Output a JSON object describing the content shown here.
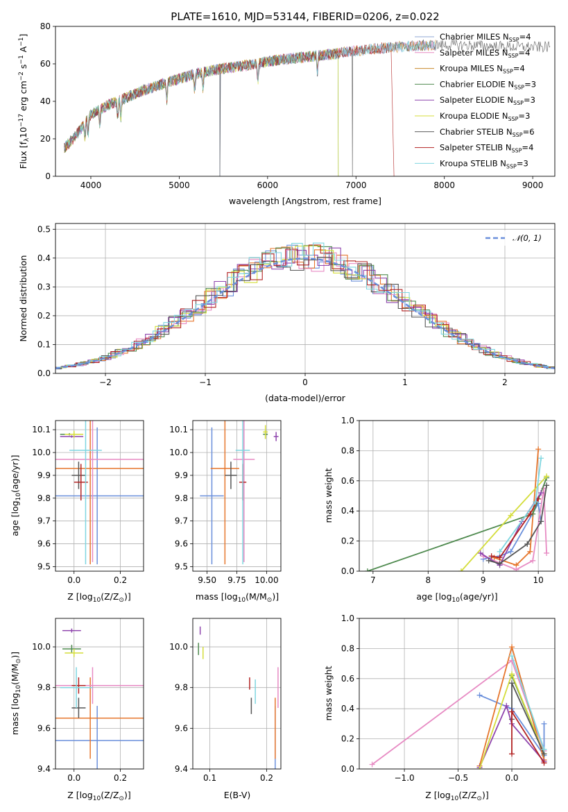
{
  "chart_data": [
    {
      "type": "line",
      "title": "PLATE=1610, MJD=53144, FIBERID=0206, z=0.022",
      "xlabel": "wavelength [Angstrom, rest frame]",
      "ylabel": "Flux [f",
      "ylabel_sub": "λ",
      "ylabel_mid": "10",
      "ylabel_exp1": "−17",
      "ylabel_tail": " erg cm",
      "ylabel_exp2": "−2",
      "ylabel_tail2": " s",
      "ylabel_exp3": "−1",
      "ylabel_tail3": " A",
      "ylabel_exp4": "−1",
      "ylabel_end": "]",
      "xlim": [
        3600,
        9250
      ],
      "ylim": [
        0,
        80
      ],
      "xticks": [
        4000,
        5000,
        6000,
        7000,
        8000,
        9000
      ],
      "yticks": [
        0,
        20,
        40,
        60,
        80
      ],
      "grid": false,
      "legend_position": "upper-right",
      "series": [
        {
          "name": "Chabrier MILES",
          "sub": "SSP",
          "n": "4",
          "color": "#8fa7d6",
          "end_x": 7900
        },
        {
          "name": "Salpeter MILES",
          "sub": "SSP",
          "n": "4",
          "color": "#e78ac3",
          "end_x": 7900
        },
        {
          "name": "Kroupa MILES",
          "sub": "SSP",
          "n": "4",
          "color": "#c8882c",
          "end_x": 7900
        },
        {
          "name": "Chabrier ELODIE",
          "sub": "SSP",
          "n": "3",
          "color": "#4f8a4f",
          "end_x": 6800
        },
        {
          "name": "Salpeter ELODIE",
          "sub": "SSP",
          "n": "3",
          "color": "#8e44ad",
          "end_x": 6800
        },
        {
          "name": "Kroupa ELODIE",
          "sub": "SSP",
          "n": "3",
          "color": "#d4dd3a",
          "end_x": 6800
        },
        {
          "name": "Chabrier STELIB",
          "sub": "SSP",
          "n": "6",
          "color": "#555555",
          "end_x": 9200
        },
        {
          "name": "Salpeter STELIB",
          "sub": "SSP",
          "n": "4",
          "color": "#b22222",
          "end_x": 7400
        },
        {
          "name": "Kroupa STELIB",
          "sub": "SSP",
          "n": "3",
          "color": "#7fd6e0",
          "end_x": 7900
        }
      ],
      "continuum": {
        "x": [
          3700,
          3800,
          3900,
          4000,
          4200,
          4400,
          4600,
          4800,
          5000,
          5200,
          5500,
          5800,
          6100,
          6400,
          6700,
          7000,
          7300,
          7600,
          7900,
          8200,
          8500,
          8800,
          9100,
          9200
        ],
        "y": [
          15,
          20,
          26,
          33,
          38,
          42,
          46,
          49,
          52,
          55,
          57.5,
          59.5,
          62,
          63.5,
          65,
          67,
          68.5,
          69.5,
          70,
          70,
          69.5,
          69,
          69,
          69
        ]
      }
    },
    {
      "type": "line",
      "xlabel": "(data-model)/error",
      "ylabel": "Normed distribution",
      "xlim": [
        -2.5,
        2.5
      ],
      "ylim": [
        0,
        0.52
      ],
      "xticks": [
        -2,
        -1,
        0,
        1,
        2
      ],
      "yticks": [
        0.0,
        0.1,
        0.2,
        0.3,
        0.4,
        0.5
      ],
      "grid": true,
      "legend_position": "upper-right",
      "legend_label": "𝒩(0, 1)",
      "hist_colors": [
        "#6a8fdb",
        "#e6752b",
        "#e78ac3",
        "#4f8a4f",
        "#8e44ad",
        "#d4dd3a",
        "#555555",
        "#b22222",
        "#7fd6e0"
      ]
    },
    {
      "type": "scatter",
      "xlabel": "Z [log",
      "xlabel_sub": "10",
      "xlabel_tail": "(Z/Z",
      "xlabel_sun": "⊙",
      "xlabel_end": ")]",
      "ylabel": "age  [log",
      "ylabel_sub": "10",
      "ylabel_tail": "(age/yr)]",
      "xlim": [
        -0.08,
        0.3
      ],
      "ylim": [
        9.48,
        10.14
      ],
      "xticks": [
        0.0,
        0.2
      ],
      "yticks": [
        9.5,
        9.6,
        9.7,
        9.8,
        9.9,
        10.0,
        10.1
      ],
      "grid": true,
      "points": [
        {
          "x": 0.1,
          "y": 9.81,
          "xerr": 0.2,
          "yerr": 0.3,
          "color": "#6a8fdb"
        },
        {
          "x": 0.07,
          "y": 9.93,
          "xerr": 0.23,
          "yerr": 0.42,
          "color": "#e6752b"
        },
        {
          "x": 0.08,
          "y": 9.97,
          "xerr": 0.22,
          "yerr": 0.45,
          "color": "#e78ac3"
        },
        {
          "x": -0.02,
          "y": 10.08,
          "xerr": 0.04,
          "yerr": 0.005,
          "color": "#4f8a4f"
        },
        {
          "x": -0.01,
          "y": 10.07,
          "xerr": 0.05,
          "yerr": 0.005,
          "color": "#8e44ad"
        },
        {
          "x": 0.0,
          "y": 10.08,
          "xerr": 0.04,
          "yerr": 0.015,
          "color": "#d4dd3a"
        },
        {
          "x": 0.02,
          "y": 9.9,
          "xerr": 0.03,
          "yerr": 0.06,
          "color": "#555555"
        },
        {
          "x": 0.03,
          "y": 9.87,
          "xerr": 0.03,
          "yerr": 0.08,
          "color": "#b22222"
        },
        {
          "x": 0.05,
          "y": 10.01,
          "xerr": 0.07,
          "yerr": 0.5,
          "color": "#7fd6e0"
        }
      ]
    },
    {
      "type": "scatter",
      "xlabel": "mass [log",
      "xlabel_sub": "10",
      "xlabel_tail": "(M/M",
      "xlabel_sun": "⊙",
      "xlabel_end": ")]",
      "xlim": [
        9.38,
        10.12
      ],
      "ylim": [
        9.48,
        10.14
      ],
      "xticks": [
        9.5,
        9.75,
        10.0
      ],
      "yticks": [
        9.5,
        9.6,
        9.7,
        9.8,
        9.9,
        10.0,
        10.1
      ],
      "grid": true,
      "points": [
        {
          "x": 9.54,
          "y": 9.81,
          "xerr": 0.1,
          "yerr": 0.3,
          "color": "#6a8fdb"
        },
        {
          "x": 9.65,
          "y": 9.93,
          "xerr": 0.12,
          "yerr": 0.42,
          "color": "#e6752b"
        },
        {
          "x": 9.81,
          "y": 9.97,
          "xerr": 0.09,
          "yerr": 0.45,
          "color": "#e78ac3"
        },
        {
          "x": 9.99,
          "y": 10.08,
          "xerr": 0.02,
          "yerr": 0.02,
          "color": "#4f8a4f"
        },
        {
          "x": 10.08,
          "y": 10.07,
          "xerr": 0.02,
          "yerr": 0.02,
          "color": "#8e44ad"
        },
        {
          "x": 9.99,
          "y": 10.09,
          "xerr": 0.02,
          "yerr": 0.03,
          "color": "#d4dd3a"
        },
        {
          "x": 9.7,
          "y": 9.9,
          "xerr": 0.05,
          "yerr": 0.06,
          "color": "#555555"
        },
        {
          "x": 9.8,
          "y": 9.87,
          "xerr": 0.03,
          "yerr": 0.08,
          "color": "#b22222"
        },
        {
          "x": 9.8,
          "y": 10.01,
          "xerr": 0.06,
          "yerr": 0.5,
          "color": "#7fd6e0"
        }
      ]
    },
    {
      "type": "line",
      "xlabel": "age  [log",
      "xlabel_sub": "10",
      "xlabel_tail": "(age/yr)]",
      "ylabel": "mass weight",
      "xlim": [
        6.75,
        10.3
      ],
      "ylim": [
        0,
        1.0
      ],
      "xticks": [
        7,
        8,
        9,
        10
      ],
      "yticks": [
        0.0,
        0.2,
        0.4,
        0.6,
        0.8,
        1.0
      ],
      "grid": true,
      "series": [
        {
          "color": "#6a8fdb",
          "x": [
            9.0,
            9.3,
            9.5,
            10.0,
            10.05
          ],
          "y": [
            0.08,
            0.1,
            0.13,
            0.45,
            0.33
          ]
        },
        {
          "color": "#e6752b",
          "x": [
            9.2,
            9.6,
            9.85,
            10.0
          ],
          "y": [
            0.09,
            0.04,
            0.13,
            0.81
          ]
        },
        {
          "color": "#e78ac3",
          "x": [
            9.0,
            9.6,
            9.9,
            10.1,
            10.15
          ],
          "y": [
            0.1,
            0.01,
            0.07,
            0.55,
            0.12
          ]
        },
        {
          "color": "#4f8a4f",
          "x": [
            6.9,
            9.9,
            10.15
          ],
          "y": [
            0.0,
            0.38,
            0.62
          ]
        },
        {
          "color": "#8e44ad",
          "x": [
            8.95,
            9.3,
            9.7,
            10.05
          ],
          "y": [
            0.12,
            0.04,
            0.33,
            0.52
          ]
        },
        {
          "color": "#d4dd3a",
          "x": [
            8.6,
            9.5,
            10.15
          ],
          "y": [
            0.0,
            0.37,
            0.63
          ]
        },
        {
          "color": "#555555",
          "x": [
            9.1,
            9.3,
            9.8,
            10.05,
            10.15
          ],
          "y": [
            0.07,
            0.05,
            0.18,
            0.33,
            0.57
          ]
        },
        {
          "color": "#b22222",
          "x": [
            9.15,
            9.3,
            9.85,
            10.0
          ],
          "y": [
            0.1,
            0.09,
            0.38,
            0.48
          ]
        },
        {
          "color": "#7fd6e0",
          "x": [
            9.3,
            9.95,
            10.05
          ],
          "y": [
            0.13,
            0.46,
            0.75
          ]
        }
      ]
    },
    {
      "type": "scatter",
      "xlabel": "Z [log",
      "xlabel_sub": "10",
      "xlabel_tail": "(Z/Z",
      "xlabel_sun": "⊙",
      "xlabel_end": ")]",
      "ylabel": "mass [log",
      "ylabel_sub": "10",
      "ylabel_tail": "(M/M",
      "ylabel_sun": "⊙",
      "ylabel_end": ")]",
      "xlim": [
        -0.08,
        0.3
      ],
      "ylim": [
        9.4,
        10.14
      ],
      "xticks": [
        0.0,
        0.2
      ],
      "yticks": [
        9.4,
        9.6,
        9.8,
        10.0
      ],
      "grid": true,
      "points": [
        {
          "x": 0.1,
          "y": 9.54,
          "xerr": 0.2,
          "yerr": 0.17,
          "color": "#6a8fdb"
        },
        {
          "x": 0.07,
          "y": 9.65,
          "xerr": 0.23,
          "yerr": 0.2,
          "color": "#e6752b"
        },
        {
          "x": 0.08,
          "y": 9.81,
          "xerr": 0.22,
          "yerr": 0.09,
          "color": "#e78ac3"
        },
        {
          "x": -0.01,
          "y": 9.99,
          "xerr": 0.04,
          "yerr": 0.02,
          "color": "#4f8a4f"
        },
        {
          "x": -0.01,
          "y": 10.08,
          "xerr": 0.04,
          "yerr": 0.01,
          "color": "#8e44ad"
        },
        {
          "x": 0.0,
          "y": 9.97,
          "xerr": 0.04,
          "yerr": 0.02,
          "color": "#d4dd3a"
        },
        {
          "x": 0.02,
          "y": 9.7,
          "xerr": 0.03,
          "yerr": 0.05,
          "color": "#555555"
        },
        {
          "x": 0.02,
          "y": 9.81,
          "xerr": 0.03,
          "yerr": 0.04,
          "color": "#b22222"
        },
        {
          "x": 0.01,
          "y": 9.8,
          "xerr": 0.07,
          "yerr": 0.1,
          "color": "#7fd6e0"
        }
      ]
    },
    {
      "type": "scatter",
      "xlabel": "E(B-V)",
      "xlim": [
        0.07,
        0.225
      ],
      "ylim": [
        9.4,
        10.14
      ],
      "xticks": [
        0.1,
        0.2
      ],
      "yticks": [
        9.4,
        9.6,
        9.8,
        10.0
      ],
      "grid": true,
      "points": [
        {
          "x": 0.215,
          "y": 9.54,
          "xerr": 0.0,
          "yerr": 0.17,
          "color": "#6a8fdb"
        },
        {
          "x": 0.215,
          "y": 9.6,
          "xerr": 0.0,
          "yerr": 0.15,
          "color": "#e6752b"
        },
        {
          "x": 0.22,
          "y": 9.8,
          "xerr": 0.0,
          "yerr": 0.1,
          "color": "#e78ac3"
        },
        {
          "x": 0.08,
          "y": 9.99,
          "xerr": 0.0,
          "yerr": 0.03,
          "color": "#4f8a4f"
        },
        {
          "x": 0.083,
          "y": 10.08,
          "xerr": 0.0,
          "yerr": 0.02,
          "color": "#8e44ad"
        },
        {
          "x": 0.088,
          "y": 9.97,
          "xerr": 0.0,
          "yerr": 0.03,
          "color": "#d4dd3a"
        },
        {
          "x": 0.173,
          "y": 9.71,
          "xerr": 0.0,
          "yerr": 0.04,
          "color": "#555555"
        },
        {
          "x": 0.17,
          "y": 9.82,
          "xerr": 0.0,
          "yerr": 0.03,
          "color": "#b22222"
        },
        {
          "x": 0.18,
          "y": 9.78,
          "xerr": 0.0,
          "yerr": 0.06,
          "color": "#7fd6e0"
        }
      ]
    },
    {
      "type": "line",
      "xlabel": "Z [log",
      "xlabel_sub": "10",
      "xlabel_tail": "(Z/Z",
      "xlabel_sun": "⊙",
      "xlabel_end": ")]",
      "ylabel": "mass weight",
      "xlim": [
        -1.42,
        0.4
      ],
      "ylim": [
        0,
        1.0
      ],
      "xticks": [
        -1.0,
        -0.5,
        0.0
      ],
      "yticks": [
        0.0,
        0.2,
        0.4,
        0.6,
        0.8,
        1.0
      ],
      "grid": true,
      "series": [
        {
          "color": "#6a8fdb",
          "x": [
            -0.3,
            0.0,
            0.3,
            0.3
          ],
          "y": [
            0.49,
            0.4,
            0.09,
            0.3
          ]
        },
        {
          "color": "#e78ac3",
          "x": [
            -1.3,
            0.0,
            0.3
          ],
          "y": [
            0.03,
            0.72,
            0.12
          ]
        },
        {
          "color": "#e6752b",
          "x": [
            -0.3,
            0.0,
            0.3
          ],
          "y": [
            0.02,
            0.81,
            0.06
          ]
        },
        {
          "color": "#4f8a4f",
          "x": [
            0.0,
            0.3
          ],
          "y": [
            0.62,
            0.1
          ]
        },
        {
          "color": "#8e44ad",
          "x": [
            -0.3,
            -0.05,
            0.0,
            0.3
          ],
          "y": [
            0.01,
            0.42,
            0.3,
            0.05
          ]
        },
        {
          "color": "#d4dd3a",
          "x": [
            -0.3,
            0.0,
            0.3
          ],
          "y": [
            0.0,
            0.63,
            0.1
          ]
        },
        {
          "color": "#555555",
          "x": [
            0.0,
            0.0,
            0.3
          ],
          "y": [
            0.33,
            0.57,
            0.1
          ]
        },
        {
          "color": "#b22222",
          "x": [
            0.0,
            0.0,
            0.3
          ],
          "y": [
            0.1,
            0.38,
            0.04
          ]
        },
        {
          "color": "#7fd6e0",
          "x": [
            0.0,
            0.3
          ],
          "y": [
            0.75,
            0.13
          ]
        }
      ]
    }
  ]
}
